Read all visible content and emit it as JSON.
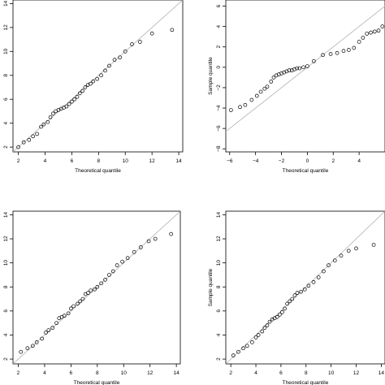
{
  "chart_data": [
    {
      "type": "scatter",
      "panel": "top-left",
      "xlabel": "Theoretical quantile",
      "ylabel": "",
      "xlim": [
        1.6,
        14.3
      ],
      "ylim": [
        1.6,
        14.3
      ],
      "xticks": [
        2,
        4,
        6,
        8,
        10,
        12,
        14
      ],
      "yticks": [
        2,
        4,
        6,
        8,
        10,
        12,
        14
      ],
      "reference_line": "y = x",
      "grid": false,
      "points": [
        [
          2.0,
          2.0
        ],
        [
          2.4,
          2.4
        ],
        [
          2.8,
          2.6
        ],
        [
          3.1,
          2.9
        ],
        [
          3.4,
          3.1
        ],
        [
          3.7,
          3.7
        ],
        [
          3.9,
          3.9
        ],
        [
          4.2,
          4.1
        ],
        [
          4.4,
          4.5
        ],
        [
          4.6,
          4.8
        ],
        [
          4.8,
          5.0
        ],
        [
          5.0,
          5.1
        ],
        [
          5.2,
          5.2
        ],
        [
          5.4,
          5.3
        ],
        [
          5.6,
          5.4
        ],
        [
          5.8,
          5.6
        ],
        [
          6.0,
          5.8
        ],
        [
          6.2,
          6.0
        ],
        [
          6.4,
          6.2
        ],
        [
          6.6,
          6.5
        ],
        [
          6.8,
          6.7
        ],
        [
          7.0,
          7.0
        ],
        [
          7.2,
          7.2
        ],
        [
          7.4,
          7.3
        ],
        [
          7.6,
          7.5
        ],
        [
          7.9,
          7.7
        ],
        [
          8.2,
          8.0
        ],
        [
          8.5,
          8.4
        ],
        [
          8.8,
          8.8
        ],
        [
          9.2,
          9.3
        ],
        [
          9.6,
          9.5
        ],
        [
          10.0,
          10.0
        ],
        [
          10.5,
          10.6
        ],
        [
          11.1,
          10.8
        ],
        [
          12.0,
          11.5
        ],
        [
          13.5,
          11.8
        ]
      ]
    },
    {
      "type": "scatter",
      "panel": "top-right",
      "xlabel": "Theoretical quantile",
      "ylabel": "Sample quantile",
      "xlim": [
        -6.3,
        6.0
      ],
      "ylim": [
        -8.3,
        6.6
      ],
      "xticks": [
        -6,
        -4,
        -2,
        0,
        2,
        4
      ],
      "yticks": [
        -8,
        -6,
        -4,
        -2,
        0,
        2,
        4,
        6
      ],
      "reference_line": "y = x",
      "grid": false,
      "points": [
        [
          -5.9,
          -4.2
        ],
        [
          -5.2,
          -3.9
        ],
        [
          -4.8,
          -3.7
        ],
        [
          -4.3,
          -3.2
        ],
        [
          -3.9,
          -2.8
        ],
        [
          -3.6,
          -2.4
        ],
        [
          -3.3,
          -2.1
        ],
        [
          -3.1,
          -1.9
        ],
        [
          -2.8,
          -1.4
        ],
        [
          -2.6,
          -1.0
        ],
        [
          -2.4,
          -0.8
        ],
        [
          -2.2,
          -0.7
        ],
        [
          -2.0,
          -0.6
        ],
        [
          -1.8,
          -0.5
        ],
        [
          -1.6,
          -0.4
        ],
        [
          -1.4,
          -0.3
        ],
        [
          -1.2,
          -0.3
        ],
        [
          -1.0,
          -0.2
        ],
        [
          -0.8,
          -0.1
        ],
        [
          -0.6,
          -0.1
        ],
        [
          -0.3,
          0.0
        ],
        [
          0.0,
          0.1
        ],
        [
          0.5,
          0.6
        ],
        [
          1.2,
          1.2
        ],
        [
          1.8,
          1.3
        ],
        [
          2.3,
          1.4
        ],
        [
          2.8,
          1.6
        ],
        [
          3.2,
          1.7
        ],
        [
          3.6,
          1.9
        ],
        [
          4.0,
          2.5
        ],
        [
          4.3,
          2.9
        ],
        [
          4.6,
          3.3
        ],
        [
          4.9,
          3.4
        ],
        [
          5.2,
          3.5
        ],
        [
          5.5,
          3.6
        ],
        [
          5.8,
          4.0
        ]
      ]
    },
    {
      "type": "scatter",
      "panel": "bottom-left",
      "xlabel": "Theoretical quantile",
      "ylabel": "",
      "xlim": [
        1.6,
        14.3
      ],
      "ylim": [
        1.6,
        14.3
      ],
      "xticks": [
        2,
        4,
        6,
        8,
        10,
        12,
        14
      ],
      "yticks": [
        2,
        4,
        6,
        8,
        10,
        12,
        14
      ],
      "reference_line": "y = x",
      "grid": false,
      "points": [
        [
          2.2,
          2.6
        ],
        [
          2.7,
          2.9
        ],
        [
          3.1,
          3.1
        ],
        [
          3.4,
          3.4
        ],
        [
          3.8,
          3.7
        ],
        [
          4.1,
          4.2
        ],
        [
          4.3,
          4.4
        ],
        [
          4.6,
          4.6
        ],
        [
          4.9,
          5.0
        ],
        [
          5.1,
          5.4
        ],
        [
          5.3,
          5.5
        ],
        [
          5.5,
          5.6
        ],
        [
          5.8,
          5.8
        ],
        [
          6.0,
          6.2
        ],
        [
          6.2,
          6.4
        ],
        [
          6.5,
          6.6
        ],
        [
          6.7,
          6.8
        ],
        [
          6.9,
          7.0
        ],
        [
          7.1,
          7.4
        ],
        [
          7.3,
          7.5
        ],
        [
          7.5,
          7.7
        ],
        [
          7.8,
          7.8
        ],
        [
          8.0,
          8.0
        ],
        [
          8.3,
          8.3
        ],
        [
          8.6,
          8.6
        ],
        [
          8.9,
          9.0
        ],
        [
          9.2,
          9.3
        ],
        [
          9.5,
          9.8
        ],
        [
          9.9,
          10.1
        ],
        [
          10.3,
          10.4
        ],
        [
          10.8,
          10.9
        ],
        [
          11.3,
          11.3
        ],
        [
          11.9,
          11.8
        ],
        [
          12.4,
          12.0
        ],
        [
          13.6,
          12.4
        ]
      ]
    },
    {
      "type": "scatter",
      "panel": "bottom-right",
      "xlabel": "Theoretical quantile",
      "ylabel": "Sample quantile",
      "xlim": [
        1.6,
        14.3
      ],
      "ylim": [
        1.6,
        14.3
      ],
      "xticks": [
        2,
        4,
        6,
        8,
        10,
        12,
        14
      ],
      "yticks": [
        2,
        4,
        6,
        8,
        10,
        12,
        14
      ],
      "reference_line": "y = x",
      "grid": false,
      "points": [
        [
          2.2,
          2.3
        ],
        [
          2.6,
          2.6
        ],
        [
          3.0,
          2.9
        ],
        [
          3.3,
          3.1
        ],
        [
          3.7,
          3.4
        ],
        [
          4.0,
          3.8
        ],
        [
          4.2,
          4.0
        ],
        [
          4.5,
          4.3
        ],
        [
          4.7,
          4.6
        ],
        [
          4.9,
          4.8
        ],
        [
          5.1,
          5.1
        ],
        [
          5.3,
          5.3
        ],
        [
          5.5,
          5.4
        ],
        [
          5.7,
          5.5
        ],
        [
          5.9,
          5.7
        ],
        [
          6.1,
          5.9
        ],
        [
          6.3,
          6.2
        ],
        [
          6.5,
          6.6
        ],
        [
          6.7,
          6.8
        ],
        [
          6.9,
          7.0
        ],
        [
          7.1,
          7.3
        ],
        [
          7.3,
          7.5
        ],
        [
          7.6,
          7.6
        ],
        [
          7.9,
          7.8
        ],
        [
          8.2,
          8.1
        ],
        [
          8.6,
          8.4
        ],
        [
          9.0,
          8.8
        ],
        [
          9.4,
          9.3
        ],
        [
          9.8,
          9.8
        ],
        [
          10.3,
          10.2
        ],
        [
          10.8,
          10.6
        ],
        [
          11.4,
          11.0
        ],
        [
          12.0,
          11.2
        ],
        [
          13.4,
          11.5
        ]
      ]
    }
  ]
}
